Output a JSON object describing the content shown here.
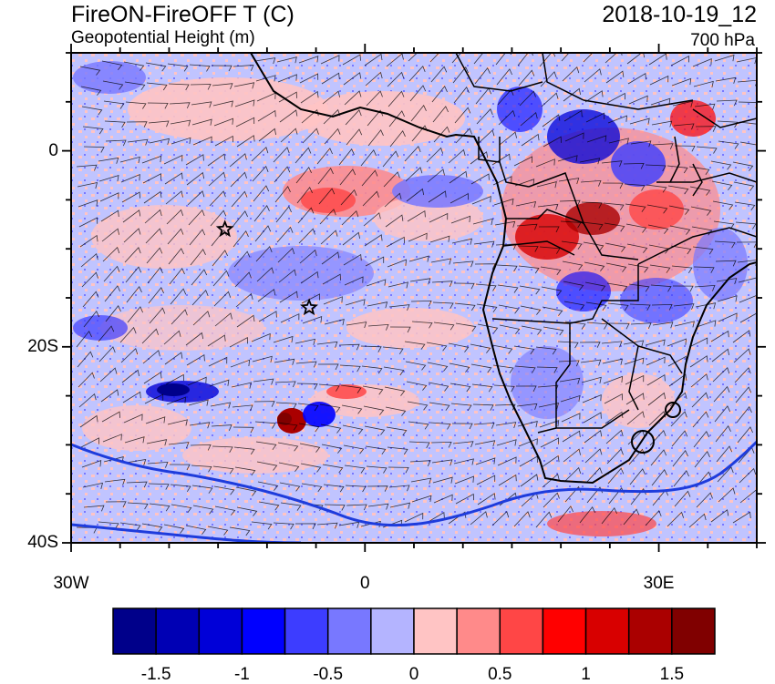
{
  "header": {
    "title": "FireON-FireOFF T (C)",
    "subtitle": "Geopotential Height (m)",
    "datetime": "2018-10-19_12",
    "level": "700 hPa"
  },
  "axes": {
    "lat_labels": [
      {
        "text": "0",
        "lat": 0
      },
      {
        "text": "20S",
        "lat": -20
      },
      {
        "text": "40S",
        "lat": -40
      }
    ],
    "lon_labels": [
      {
        "text": "30W",
        "lon": -30
      },
      {
        "text": "0",
        "lon": 0
      },
      {
        "text": "30E",
        "lon": 30
      }
    ],
    "lon_range": [
      -30,
      40
    ],
    "lat_range": [
      -40,
      10
    ]
  },
  "colorbar": {
    "labels": [
      "-1.5",
      "-1",
      "-0.5",
      "0",
      "0.5",
      "1",
      "1.5"
    ],
    "colors": [
      "#00008a",
      "#0000b4",
      "#0000d8",
      "#0000ff",
      "#3d3dff",
      "#7878ff",
      "#b4b4ff",
      "#ffc4c4",
      "#ff8a8a",
      "#ff4646",
      "#ff0000",
      "#d80000",
      "#aa0000",
      "#800000"
    ]
  },
  "markers": [
    {
      "name": "star-marker",
      "lon": -14.3,
      "lat": -8.0
    },
    {
      "name": "star-marker",
      "lon": -5.7,
      "lat": -16.0
    }
  ]
}
